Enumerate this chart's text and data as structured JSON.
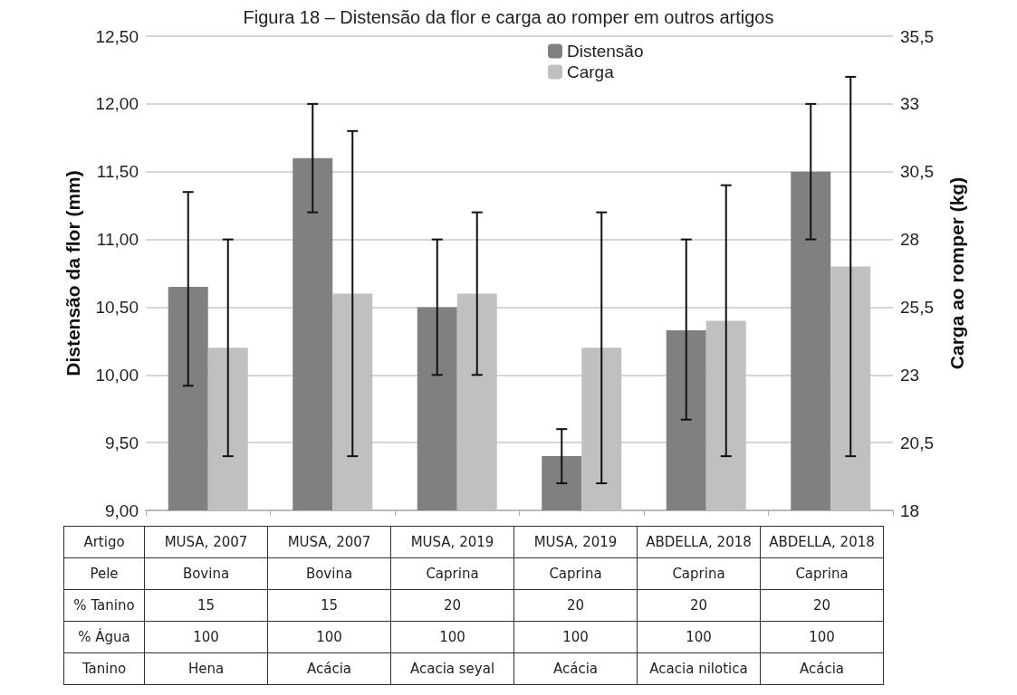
{
  "chart_data": {
    "type": "bar",
    "title": "Figura 18 – Distensão da flor e carga ao romper em outros artigos",
    "ylabel": "Distensão da flor (mm)",
    "y2label": "Carga ao romper (kg)",
    "categories": [
      "MUSA, 2007",
      "MUSA, 2007",
      "MUSA, 2019",
      "MUSA, 2019",
      "ABDELLA, 2018",
      "ABDELLA, 2018"
    ],
    "series": [
      {
        "name": "Distensão",
        "color": "#808080",
        "values": [
          10.65,
          11.6,
          10.5,
          9.4,
          10.33,
          11.5
        ],
        "errors": [
          [
            9.92,
            11.35
          ],
          [
            11.2,
            12.0
          ],
          [
            10.0,
            11.0
          ],
          [
            9.2,
            9.6
          ],
          [
            9.67,
            11.0
          ],
          [
            11.0,
            12.0
          ]
        ]
      },
      {
        "name": "Carga",
        "color": "#c0c0c0",
        "axis": "y2",
        "values": [
          24,
          26,
          26,
          24,
          25,
          27
        ],
        "errors": [
          [
            20,
            28
          ],
          [
            20,
            32
          ],
          [
            23,
            29
          ],
          [
            19,
            29
          ],
          [
            20,
            30
          ],
          [
            20,
            34
          ]
        ]
      }
    ],
    "ylim": [
      9,
      12.5
    ],
    "yticks": [
      {
        "value": 9,
        "label": "9,00"
      },
      {
        "value": 9.5,
        "label": "9,50"
      },
      {
        "value": 10,
        "label": "10,00"
      },
      {
        "value": 10.5,
        "label": "10,50"
      },
      {
        "value": 11,
        "label": "11,00"
      },
      {
        "value": 11.5,
        "label": "11,50"
      },
      {
        "value": 12,
        "label": "12,00"
      },
      {
        "value": 12.5,
        "label": "12,50"
      }
    ],
    "y2lim": [
      18,
      35.5
    ],
    "y2ticks": [
      18,
      {
        "value": 20.5,
        "label": "20,5"
      },
      23,
      {
        "value": 25.5,
        "label": "25,5"
      },
      28,
      {
        "value": 30.5,
        "label": "30,5"
      },
      33,
      {
        "value": 35.5,
        "label": "35,5"
      }
    ],
    "grid": "y",
    "legend": "top",
    "tick_labels": "y",
    "annotations": [
      "Artigo",
      "Pele",
      "Bovina",
      "Bovina",
      "Caprina",
      "Caprina",
      "Caprina",
      "Caprina",
      "% Tanino",
      "15",
      "15",
      "20",
      "20",
      "20",
      "20",
      "% Água",
      "100",
      "100",
      "100",
      "100",
      "100",
      "100",
      "Tanino",
      "Hena",
      "Acácia",
      "Acacia seyal",
      "Acácia",
      "Acacia nilotica",
      "Acácia"
    ]
  }
}
